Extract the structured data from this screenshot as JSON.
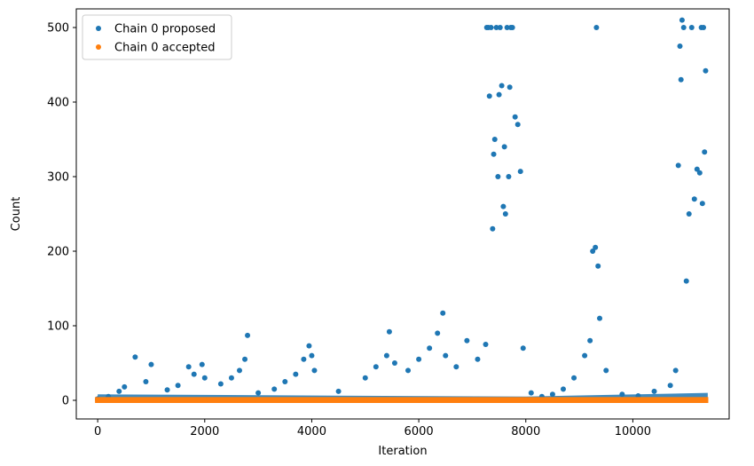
{
  "chart_data": {
    "type": "scatter",
    "xlabel": "Iteration",
    "ylabel": "Count",
    "xlim": [
      -400,
      11800
    ],
    "ylim": [
      -25,
      525
    ],
    "x_ticks": [
      0,
      2000,
      4000,
      6000,
      8000,
      10000
    ],
    "x_tick_labels": [
      "0",
      "2000",
      "4000",
      "6000",
      "8000",
      "10000"
    ],
    "y_ticks": [
      0,
      100,
      200,
      300,
      400,
      500
    ],
    "y_tick_labels": [
      "0",
      "100",
      "200",
      "300",
      "400",
      "500"
    ],
    "grid": false,
    "legend_position": "top-left",
    "series": [
      {
        "name": "Chain 0 proposed",
        "color": "#1f77b4",
        "x": [
          0,
          200,
          400,
          500,
          700,
          900,
          1000,
          1300,
          1500,
          1700,
          1800,
          1950,
          2000,
          2300,
          2500,
          2650,
          2750,
          2800,
          3000,
          3300,
          3500,
          3700,
          3850,
          3950,
          4000,
          4050,
          4500,
          5000,
          5200,
          5400,
          5450,
          5550,
          5800,
          6000,
          6200,
          6350,
          6450,
          6500,
          6700,
          6900,
          7100,
          7250,
          7270,
          7300,
          7320,
          7350,
          7380,
          7400,
          7420,
          7450,
          7480,
          7500,
          7520,
          7550,
          7580,
          7600,
          7620,
          7650,
          7680,
          7700,
          7720,
          7750,
          7800,
          7850,
          7900,
          7950,
          8100,
          8300,
          8500,
          8700,
          8900,
          9100,
          9200,
          9250,
          9300,
          9320,
          9350,
          9380,
          9500,
          9800,
          10100,
          10400,
          10700,
          10800,
          10850,
          10880,
          10900,
          10920,
          10950,
          11000,
          11050,
          11100,
          11150,
          11200,
          11250,
          11280,
          11300,
          11320,
          11340,
          11360
        ],
        "y": [
          2,
          5,
          12,
          18,
          58,
          25,
          48,
          14,
          20,
          45,
          35,
          48,
          30,
          22,
          30,
          40,
          55,
          87,
          10,
          15,
          25,
          35,
          55,
          73,
          60,
          40,
          12,
          30,
          45,
          60,
          92,
          50,
          40,
          55,
          70,
          90,
          117,
          60,
          45,
          80,
          55,
          75,
          500,
          500,
          408,
          500,
          230,
          330,
          350,
          500,
          300,
          410,
          500,
          422,
          260,
          340,
          250,
          500,
          300,
          420,
          500,
          500,
          380,
          370,
          307,
          70,
          10,
          5,
          8,
          15,
          30,
          60,
          80,
          200,
          205,
          500,
          180,
          110,
          40,
          8,
          6,
          12,
          20,
          40,
          315,
          475,
          430,
          510,
          500,
          160,
          250,
          500,
          270,
          310,
          305,
          500,
          264,
          500,
          333,
          442
        ],
        "density_band": [
          [
            0,
            8
          ],
          [
            8000,
            5
          ],
          [
            11400,
            10
          ]
        ]
      },
      {
        "name": "Chain 0 accepted",
        "color": "#ff7f0e",
        "x": [
          0,
          1000,
          2000,
          3000,
          4000,
          5000,
          6000,
          7000,
          8000,
          9000,
          10000,
          11000,
          11360
        ],
        "y": [
          0,
          0,
          0,
          0,
          0,
          0,
          0,
          0,
          0,
          0,
          0,
          0,
          0
        ],
        "band_range": [
          0,
          2
        ]
      }
    ]
  }
}
